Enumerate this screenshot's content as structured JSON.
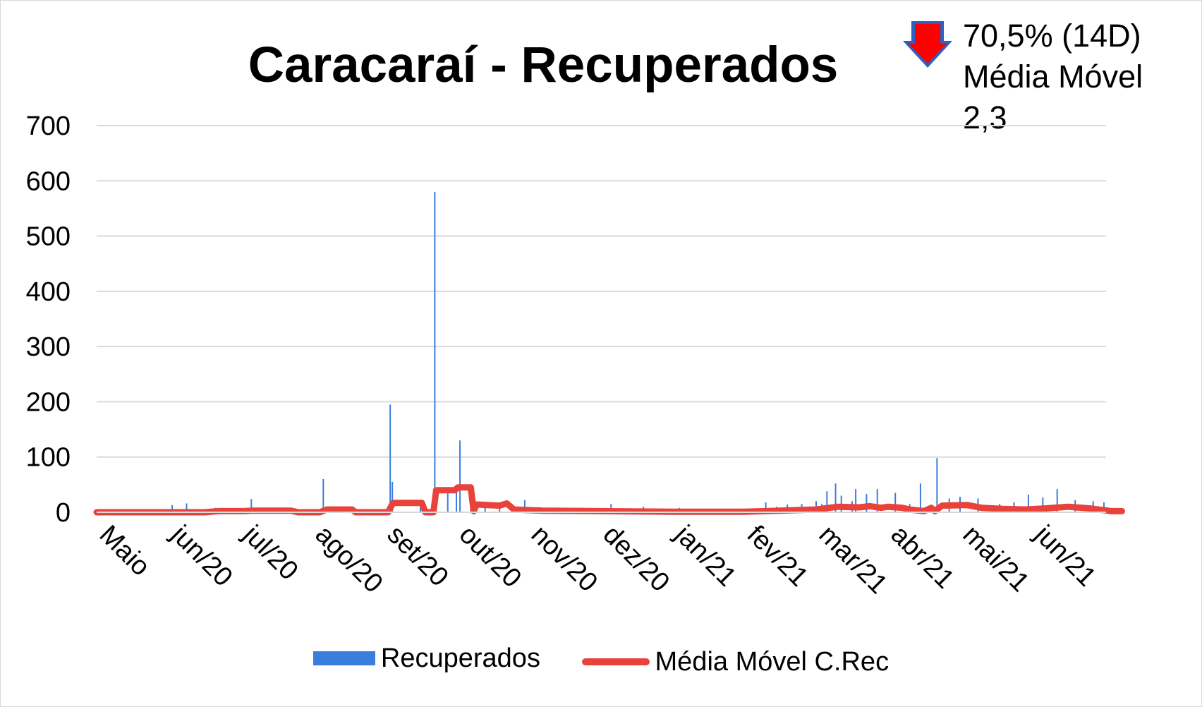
{
  "chart_data": {
    "type": "bar",
    "title": "Caracaraí - Recuperados",
    "annotation": {
      "line1": "70,5% (14D)",
      "line2": "Média Móvel",
      "line3": "2,3",
      "arrow": "down-arrow-icon",
      "arrow_color": "#ff0000"
    },
    "xlabel": "",
    "ylabel": "",
    "ylim": [
      0,
      700
    ],
    "yticks": [
      "0",
      "100",
      "200",
      "300",
      "400",
      "500",
      "600",
      "700"
    ],
    "categories": [
      "Maio",
      "jun/20",
      "jul/20",
      "ago/20",
      "set/20",
      "out/20",
      "nov/20",
      "dez/20",
      "jan/21",
      "fev/21",
      "mar/21",
      "abr/21",
      "mai/21",
      "jun/21"
    ],
    "grid": true,
    "legend_position": "bottom",
    "series": [
      {
        "name": "Recuperados",
        "kind": "bar",
        "color": "#3b7ddd",
        "spikes": [
          {
            "x": 1.05,
            "y": 13
          },
          {
            "x": 1.25,
            "y": 16
          },
          {
            "x": 1.65,
            "y": 8
          },
          {
            "x": 2.15,
            "y": 24
          },
          {
            "x": 2.6,
            "y": 5
          },
          {
            "x": 3.15,
            "y": 60
          },
          {
            "x": 3.5,
            "y": 7
          },
          {
            "x": 4.0,
            "y": 6
          },
          {
            "x": 4.08,
            "y": 195
          },
          {
            "x": 4.11,
            "y": 55
          },
          {
            "x": 4.5,
            "y": 10
          },
          {
            "x": 4.7,
            "y": 580
          },
          {
            "x": 4.88,
            "y": 40
          },
          {
            "x": 5.0,
            "y": 35
          },
          {
            "x": 5.05,
            "y": 130
          },
          {
            "x": 5.2,
            "y": 18
          },
          {
            "x": 5.4,
            "y": 15
          },
          {
            "x": 5.6,
            "y": 12
          },
          {
            "x": 5.95,
            "y": 22
          },
          {
            "x": 6.2,
            "y": 8
          },
          {
            "x": 6.6,
            "y": 6
          },
          {
            "x": 7.15,
            "y": 15
          },
          {
            "x": 7.6,
            "y": 10
          },
          {
            "x": 8.1,
            "y": 8
          },
          {
            "x": 8.5,
            "y": 6
          },
          {
            "x": 9.3,
            "y": 18
          },
          {
            "x": 9.45,
            "y": 10
          },
          {
            "x": 9.6,
            "y": 14
          },
          {
            "x": 9.8,
            "y": 15
          },
          {
            "x": 10.0,
            "y": 20
          },
          {
            "x": 10.08,
            "y": 15
          },
          {
            "x": 10.15,
            "y": 38
          },
          {
            "x": 10.27,
            "y": 52
          },
          {
            "x": 10.35,
            "y": 30
          },
          {
            "x": 10.5,
            "y": 20
          },
          {
            "x": 10.55,
            "y": 42
          },
          {
            "x": 10.7,
            "y": 33
          },
          {
            "x": 10.85,
            "y": 42
          },
          {
            "x": 11.1,
            "y": 35
          },
          {
            "x": 11.3,
            "y": 15
          },
          {
            "x": 11.45,
            "y": 52
          },
          {
            "x": 11.68,
            "y": 98
          },
          {
            "x": 11.85,
            "y": 25
          },
          {
            "x": 12.0,
            "y": 28
          },
          {
            "x": 12.25,
            "y": 25
          },
          {
            "x": 12.55,
            "y": 15
          },
          {
            "x": 12.75,
            "y": 18
          },
          {
            "x": 12.95,
            "y": 32
          },
          {
            "x": 13.15,
            "y": 27
          },
          {
            "x": 13.35,
            "y": 42
          },
          {
            "x": 13.6,
            "y": 22
          },
          {
            "x": 13.85,
            "y": 20
          },
          {
            "x": 14.0,
            "y": 18
          }
        ]
      },
      {
        "name": "Média Móvel C.Rec",
        "kind": "line",
        "color": "#e8423a",
        "points": [
          [
            0,
            0
          ],
          [
            1.5,
            0
          ],
          [
            1.7,
            2
          ],
          [
            2.05,
            2
          ],
          [
            2.15,
            3
          ],
          [
            2.7,
            3
          ],
          [
            2.8,
            0
          ],
          [
            3.1,
            0
          ],
          [
            3.2,
            5
          ],
          [
            3.55,
            5
          ],
          [
            3.6,
            0
          ],
          [
            4.05,
            0
          ],
          [
            4.12,
            17
          ],
          [
            4.52,
            17
          ],
          [
            4.57,
            0
          ],
          [
            4.68,
            0
          ],
          [
            4.72,
            40
          ],
          [
            4.98,
            40
          ],
          [
            5.02,
            45
          ],
          [
            5.2,
            45
          ],
          [
            5.24,
            2
          ],
          [
            5.28,
            14
          ],
          [
            5.6,
            12
          ],
          [
            5.7,
            16
          ],
          [
            5.8,
            5
          ],
          [
            6.2,
            3
          ],
          [
            7.0,
            2
          ],
          [
            8.0,
            1
          ],
          [
            9.0,
            1
          ],
          [
            9.5,
            3
          ],
          [
            10.0,
            5
          ],
          [
            10.3,
            10
          ],
          [
            10.6,
            9
          ],
          [
            10.75,
            11
          ],
          [
            10.9,
            8
          ],
          [
            11.0,
            10
          ],
          [
            11.2,
            8
          ],
          [
            11.3,
            5
          ],
          [
            11.5,
            2
          ],
          [
            11.6,
            8
          ],
          [
            11.65,
            2
          ],
          [
            11.75,
            12
          ],
          [
            12.1,
            13
          ],
          [
            12.3,
            8
          ],
          [
            12.6,
            6
          ],
          [
            12.9,
            5
          ],
          [
            13.2,
            7
          ],
          [
            13.5,
            10
          ],
          [
            13.8,
            7
          ],
          [
            14.05,
            3
          ],
          [
            14.1,
            2
          ],
          [
            14.25,
            2
          ]
        ]
      }
    ]
  }
}
